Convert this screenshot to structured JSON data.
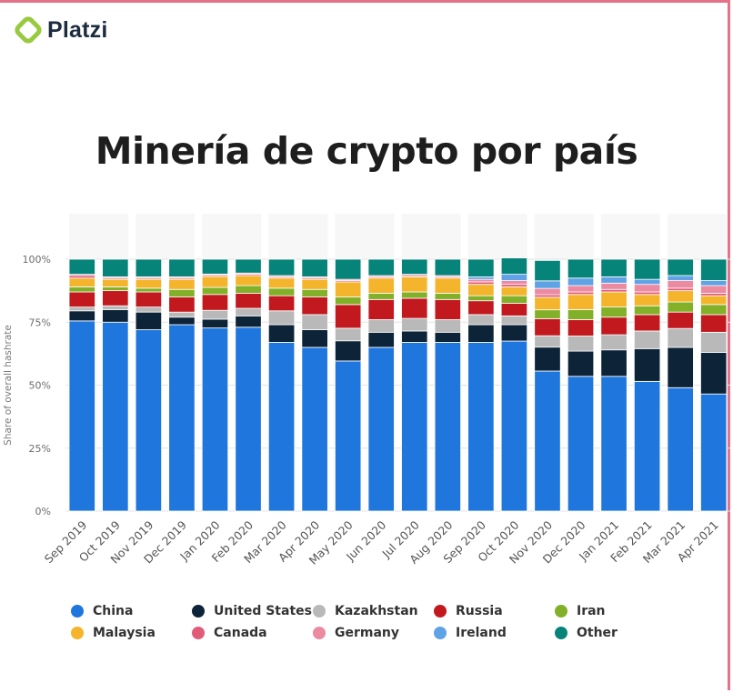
{
  "brand": {
    "name": "Platzi",
    "logo_icon": "platzi-logo-icon",
    "color": "#98ca3f"
  },
  "title": "Minería de crypto por país",
  "frame_color": "#e4738a",
  "chart_data": {
    "type": "bar",
    "stacked": true,
    "ylabel": "Share of overall hashrate",
    "ylim": [
      0,
      100
    ],
    "yticks": [
      "0%",
      "25%",
      "50%",
      "75%",
      "100%"
    ],
    "ytick_values": [
      0,
      25,
      50,
      75,
      100
    ],
    "grid": true,
    "legend_position": "bottom",
    "categories": [
      "Sep 2019",
      "Oct 2019",
      "Nov 2019",
      "Dec 2019",
      "Jan 2020",
      "Feb 2020",
      "Mar 2020",
      "Apr 2020",
      "May 2020",
      "Jun 2020",
      "Jul 2020",
      "Aug 2020",
      "Sep 2020",
      "Oct 2020",
      "Nov 2020",
      "Dec 2020",
      "Jan 2021",
      "Feb 2021",
      "Mar 2021",
      "Apr 2021"
    ],
    "series": [
      {
        "name": "China",
        "color": "#1f77de",
        "values": [
          75.5,
          75,
          72,
          74,
          72.7,
          73,
          67,
          65,
          59.6,
          65,
          67,
          67,
          67,
          67.5,
          55.6,
          53.5,
          53.5,
          51.5,
          49,
          46.5
        ]
      },
      {
        "name": "United States",
        "color": "#0c2338",
        "values": [
          4,
          5,
          7,
          3,
          3.5,
          4.5,
          7,
          7,
          8,
          6,
          4.5,
          4,
          7,
          6.5,
          9.5,
          10,
          10.5,
          13,
          16,
          16.5
        ]
      },
      {
        "name": "Kazakhstan",
        "color": "#b9b9b9",
        "values": [
          1.5,
          1.5,
          2,
          2,
          3.5,
          3,
          5.5,
          6,
          5,
          5,
          5,
          5,
          4,
          3.5,
          4.5,
          6,
          6,
          7,
          7.5,
          8
        ]
      },
      {
        "name": "Russia",
        "color": "#c2191f",
        "values": [
          6,
          6,
          6,
          6,
          6.3,
          6,
          6,
          7,
          9.4,
          8,
          8,
          8,
          5.5,
          5,
          6.8,
          6.5,
          7,
          6.5,
          6.5,
          7
        ]
      },
      {
        "name": "Iran",
        "color": "#82b028",
        "values": [
          2,
          1.5,
          1.5,
          3,
          2.8,
          3,
          3,
          3,
          3,
          2.5,
          2.5,
          2.5,
          2,
          3,
          3.5,
          4,
          4,
          3.5,
          4,
          4
        ]
      },
      {
        "name": "Malaysia",
        "color": "#f4b52c",
        "values": [
          3.5,
          3,
          3.5,
          4,
          4.3,
          4,
          4,
          4,
          6,
          6,
          6,
          6,
          4.5,
          3.5,
          5,
          6,
          6,
          4.5,
          4.5,
          3.5
        ]
      },
      {
        "name": "Canada",
        "color": "#e25b79",
        "values": [
          1,
          0.5,
          0.5,
          0.5,
          0.5,
          0.5,
          0.5,
          0.5,
          0.5,
          0.5,
          0.5,
          0.5,
          1,
          1,
          1,
          1,
          1,
          1,
          1,
          1
        ]
      },
      {
        "name": "Germany",
        "color": "#ec8aa2",
        "values": [
          0.5,
          0.5,
          0.5,
          0.5,
          0.5,
          0.5,
          0.5,
          0.5,
          0.5,
          0.5,
          0.5,
          0.5,
          1,
          1.5,
          2.5,
          2.5,
          2.5,
          3,
          3,
          3
        ]
      },
      {
        "name": "Ireland",
        "color": "#5fa2e6",
        "values": [
          0,
          0,
          0,
          0,
          0,
          0,
          0,
          0,
          0,
          0,
          0,
          0,
          1,
          2.5,
          3,
          3,
          2.5,
          2,
          2,
          2
        ]
      },
      {
        "name": "Other",
        "color": "#07847a",
        "values": [
          6,
          7,
          7,
          7,
          5.9,
          5.5,
          6.5,
          7,
          8,
          6.5,
          6,
          6.5,
          7,
          6.5,
          8.1,
          7.5,
          7,
          8,
          6.5,
          8.5
        ]
      }
    ]
  },
  "legend_rows": [
    [
      "China",
      "United States",
      "Kazakhstan",
      "Russia",
      "Iran"
    ],
    [
      "Malaysia",
      "Canada",
      "Germany",
      "Ireland",
      "Other"
    ]
  ]
}
